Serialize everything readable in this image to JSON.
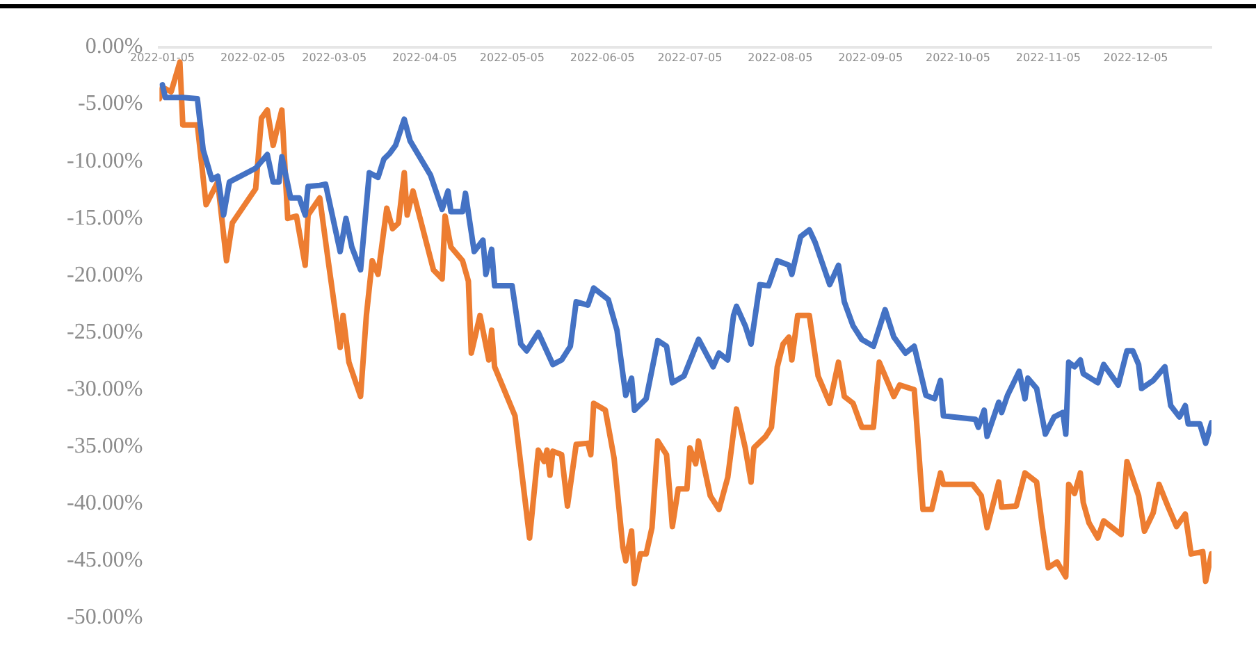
{
  "chart_data": {
    "type": "line",
    "xlim": [
      "2022-01-04",
      "2022-12-31"
    ],
    "xticks": [
      "2022-01-05",
      "2022-02-05",
      "2022-03-05",
      "2022-04-05",
      "2022-05-05",
      "2022-06-05",
      "2022-07-05",
      "2022-08-05",
      "2022-09-05",
      "2022-10-05",
      "2022-11-05",
      "2022-12-05"
    ],
    "ylim": [
      -50,
      0
    ],
    "yticks": [
      {
        "value": 0,
        "label": "0.00%"
      },
      {
        "value": -5,
        "label": "-5.00%"
      },
      {
        "value": -10,
        "label": "-10.00%"
      },
      {
        "value": -15,
        "label": "-15.00%"
      },
      {
        "value": -20,
        "label": "-20.00%"
      },
      {
        "value": -25,
        "label": "-25.00%"
      },
      {
        "value": -30,
        "label": "-30.00%"
      },
      {
        "value": -35,
        "label": "-35.00%"
      },
      {
        "value": -40,
        "label": "-40.00%"
      },
      {
        "value": -45,
        "label": "-45.00%"
      },
      {
        "value": -50,
        "label": "-50.00%"
      }
    ],
    "grid": false,
    "series": [
      {
        "color": "#4472c4",
        "x": [
          "2022-01-05",
          "2022-01-06",
          "2022-01-12",
          "2022-01-17",
          "2022-01-19",
          "2022-01-22",
          "2022-01-24",
          "2022-01-26",
          "2022-01-28",
          "2022-02-06",
          "2022-02-10",
          "2022-02-12",
          "2022-02-14",
          "2022-02-15",
          "2022-02-18",
          "2022-02-21",
          "2022-02-23",
          "2022-02-24",
          "2022-02-28",
          "2022-03-02",
          "2022-03-07",
          "2022-03-09",
          "2022-03-11",
          "2022-03-14",
          "2022-03-17",
          "2022-03-20",
          "2022-03-22",
          "2022-03-24",
          "2022-03-26",
          "2022-03-29",
          "2022-03-31",
          "2022-04-07",
          "2022-04-11",
          "2022-04-13",
          "2022-04-14",
          "2022-04-18",
          "2022-04-19",
          "2022-04-22",
          "2022-04-25",
          "2022-04-26",
          "2022-04-28",
          "2022-04-29",
          "2022-05-05",
          "2022-05-08",
          "2022-05-10",
          "2022-05-14",
          "2022-05-19",
          "2022-05-22",
          "2022-05-25",
          "2022-05-27",
          "2022-05-31",
          "2022-06-02",
          "2022-06-07",
          "2022-06-10",
          "2022-06-13",
          "2022-06-15",
          "2022-06-16",
          "2022-06-20",
          "2022-06-24",
          "2022-06-27",
          "2022-06-29",
          "2022-07-03",
          "2022-07-08",
          "2022-07-13",
          "2022-07-15",
          "2022-07-18",
          "2022-07-20",
          "2022-07-21",
          "2022-07-24",
          "2022-07-26",
          "2022-07-29",
          "2022-08-01",
          "2022-08-04",
          "2022-08-08",
          "2022-08-09",
          "2022-08-12",
          "2022-08-15",
          "2022-08-17",
          "2022-08-22",
          "2022-08-25",
          "2022-08-27",
          "2022-08-30",
          "2022-09-02",
          "2022-09-06",
          "2022-09-10",
          "2022-09-13",
          "2022-09-17",
          "2022-09-20",
          "2022-09-24",
          "2022-09-27",
          "2022-09-29",
          "2022-09-30",
          "2022-10-11",
          "2022-10-12",
          "2022-10-14",
          "2022-10-15",
          "2022-10-19",
          "2022-10-20",
          "2022-10-22",
          "2022-10-26",
          "2022-10-28",
          "2022-10-29",
          "2022-11-01",
          "2022-11-04",
          "2022-11-07",
          "2022-11-10",
          "2022-11-11",
          "2022-11-12",
          "2022-11-14",
          "2022-11-16",
          "2022-11-17",
          "2022-11-22",
          "2022-11-24",
          "2022-11-29",
          "2022-12-02",
          "2022-12-04",
          "2022-12-06",
          "2022-12-07",
          "2022-12-11",
          "2022-12-15",
          "2022-12-17",
          "2022-12-20",
          "2022-12-22",
          "2022-12-23",
          "2022-12-27",
          "2022-12-29",
          "2022-12-31"
        ],
        "values": [
          -3.3,
          -4.4,
          -4.4,
          -4.5,
          -9.0,
          -11.6,
          -11.3,
          -14.7,
          -11.8,
          -10.6,
          -9.4,
          -11.8,
          -11.8,
          -9.6,
          -13.2,
          -13.2,
          -14.7,
          -12.2,
          -12.1,
          -12.0,
          -17.9,
          -15.0,
          -17.5,
          -19.5,
          -11.0,
          -11.4,
          -9.8,
          -9.3,
          -8.6,
          -6.3,
          -8.2,
          -11.2,
          -14.2,
          -12.6,
          -14.4,
          -14.4,
          -12.8,
          -17.9,
          -16.9,
          -19.9,
          -17.7,
          -20.9,
          -20.9,
          -26.0,
          -26.6,
          -25.0,
          -27.8,
          -27.4,
          -26.2,
          -22.3,
          -22.6,
          -21.1,
          -22.1,
          -24.8,
          -30.5,
          -29.0,
          -31.8,
          -30.8,
          -25.7,
          -26.2,
          -29.4,
          -28.8,
          -25.6,
          -28.0,
          -26.8,
          -27.4,
          -23.5,
          -22.7,
          -24.4,
          -26.0,
          -20.8,
          -20.9,
          -18.7,
          -19.1,
          -19.9,
          -16.6,
          -16.0,
          -17.1,
          -20.8,
          -19.1,
          -22.3,
          -24.4,
          -25.6,
          -26.2,
          -23.0,
          -25.4,
          -26.8,
          -26.2,
          -30.5,
          -30.8,
          -29.2,
          -32.3,
          -32.6,
          -33.3,
          -31.8,
          -34.1,
          -31.1,
          -32.0,
          -30.5,
          -28.4,
          -30.8,
          -29.0,
          -29.9,
          -33.9,
          -32.4,
          -32.0,
          -33.9,
          -27.6,
          -28.0,
          -27.4,
          -28.6,
          -29.4,
          -27.8,
          -29.6,
          -26.6,
          -26.6,
          -27.8,
          -29.9,
          -29.2,
          -28.0,
          -31.4,
          -32.4,
          -31.4,
          -33.0,
          -33.0,
          -34.7,
          -32.9
        ]
      },
      {
        "color": "#ed7d31",
        "x": [
          "2022-01-04",
          "2022-01-05",
          "2022-01-08",
          "2022-01-11",
          "2022-01-12",
          "2022-01-17",
          "2022-01-20",
          "2022-01-24",
          "2022-01-27",
          "2022-01-29",
          "2022-02-06",
          "2022-02-08",
          "2022-02-10",
          "2022-02-12",
          "2022-02-15",
          "2022-02-17",
          "2022-02-20",
          "2022-02-23",
          "2022-02-24",
          "2022-02-28",
          "2022-03-03",
          "2022-03-06",
          "2022-03-07",
          "2022-03-08",
          "2022-03-10",
          "2022-03-14",
          "2022-03-16",
          "2022-03-18",
          "2022-03-20",
          "2022-03-23",
          "2022-03-25",
          "2022-03-27",
          "2022-03-29",
          "2022-03-30",
          "2022-04-01",
          "2022-04-08",
          "2022-04-11",
          "2022-04-12",
          "2022-04-14",
          "2022-04-18",
          "2022-04-20",
          "2022-04-21",
          "2022-04-24",
          "2022-04-27",
          "2022-04-28",
          "2022-04-29",
          "2022-05-06",
          "2022-05-11",
          "2022-05-14",
          "2022-05-16",
          "2022-05-17",
          "2022-05-18",
          "2022-05-19",
          "2022-05-22",
          "2022-05-24",
          "2022-05-27",
          "2022-05-31",
          "2022-06-01",
          "2022-06-02",
          "2022-06-06",
          "2022-06-09",
          "2022-06-12",
          "2022-06-13",
          "2022-06-15",
          "2022-06-16",
          "2022-06-18",
          "2022-06-20",
          "2022-06-22",
          "2022-06-24",
          "2022-06-27",
          "2022-06-28",
          "2022-06-29",
          "2022-07-01",
          "2022-07-04",
          "2022-07-05",
          "2022-07-07",
          "2022-07-08",
          "2022-07-12",
          "2022-07-15",
          "2022-07-18",
          "2022-07-21",
          "2022-07-24",
          "2022-07-26",
          "2022-07-27",
          "2022-07-31",
          "2022-08-02",
          "2022-08-04",
          "2022-08-06",
          "2022-08-08",
          "2022-08-09",
          "2022-08-11",
          "2022-08-15",
          "2022-08-18",
          "2022-08-22",
          "2022-08-25",
          "2022-08-27",
          "2022-08-30",
          "2022-09-02",
          "2022-09-06",
          "2022-09-08",
          "2022-09-13",
          "2022-09-15",
          "2022-09-20",
          "2022-09-23",
          "2022-09-26",
          "2022-09-29",
          "2022-09-30",
          "2022-10-10",
          "2022-10-13",
          "2022-10-15",
          "2022-10-19",
          "2022-10-20",
          "2022-10-25",
          "2022-10-28",
          "2022-11-01",
          "2022-11-03",
          "2022-11-05",
          "2022-11-08",
          "2022-11-11",
          "2022-11-12",
          "2022-11-14",
          "2022-11-16",
          "2022-11-17",
          "2022-11-19",
          "2022-11-22",
          "2022-11-24",
          "2022-11-30",
          "2022-12-02",
          "2022-12-06",
          "2022-12-08",
          "2022-12-11",
          "2022-12-13",
          "2022-12-16",
          "2022-12-19",
          "2022-12-22",
          "2022-12-24",
          "2022-12-28",
          "2022-12-29",
          "2022-12-31"
        ],
        "values": [
          -4.5,
          -3.5,
          -3.9,
          -1.3,
          -6.8,
          -6.8,
          -13.8,
          -11.8,
          -18.7,
          -15.4,
          -12.4,
          -6.2,
          -5.5,
          -8.6,
          -5.5,
          -15.0,
          -14.8,
          -19.1,
          -14.7,
          -13.2,
          -18.9,
          -24.4,
          -26.3,
          -23.5,
          -27.6,
          -30.6,
          -23.5,
          -18.7,
          -19.9,
          -14.1,
          -15.9,
          -15.4,
          -11.0,
          -14.7,
          -12.6,
          -19.5,
          -20.3,
          -14.8,
          -17.5,
          -18.7,
          -20.5,
          -26.8,
          -23.5,
          -27.4,
          -24.8,
          -28.0,
          -32.3,
          -43.0,
          -35.3,
          -36.3,
          -35.3,
          -37.5,
          -35.4,
          -35.7,
          -40.2,
          -34.8,
          -34.7,
          -35.7,
          -31.2,
          -31.8,
          -36.0,
          -43.8,
          -45.0,
          -42.4,
          -47.0,
          -44.4,
          -44.4,
          -42.1,
          -34.5,
          -35.7,
          -38.7,
          -42.0,
          -38.7,
          -38.7,
          -35.1,
          -36.5,
          -34.5,
          -39.3,
          -40.5,
          -37.7,
          -31.7,
          -35.1,
          -38.1,
          -35.1,
          -34.1,
          -33.3,
          -28.0,
          -26.0,
          -25.4,
          -27.4,
          -23.5,
          -23.5,
          -28.8,
          -31.2,
          -27.6,
          -30.6,
          -31.2,
          -33.3,
          -33.3,
          -27.6,
          -30.6,
          -29.6,
          -30.0,
          -40.5,
          -40.5,
          -37.3,
          -38.3,
          -38.3,
          -39.3,
          -42.1,
          -38.1,
          -40.3,
          -40.2,
          -37.3,
          -38.1,
          -42.1,
          -45.6,
          -45.1,
          -46.4,
          -38.3,
          -39.1,
          -37.3,
          -39.9,
          -41.7,
          -43.0,
          -41.5,
          -42.7,
          -36.3,
          -39.3,
          -42.4,
          -40.8,
          -38.3,
          -40.2,
          -42.0,
          -40.9,
          -44.4,
          -44.2,
          -46.8,
          -44.4
        ]
      }
    ]
  }
}
